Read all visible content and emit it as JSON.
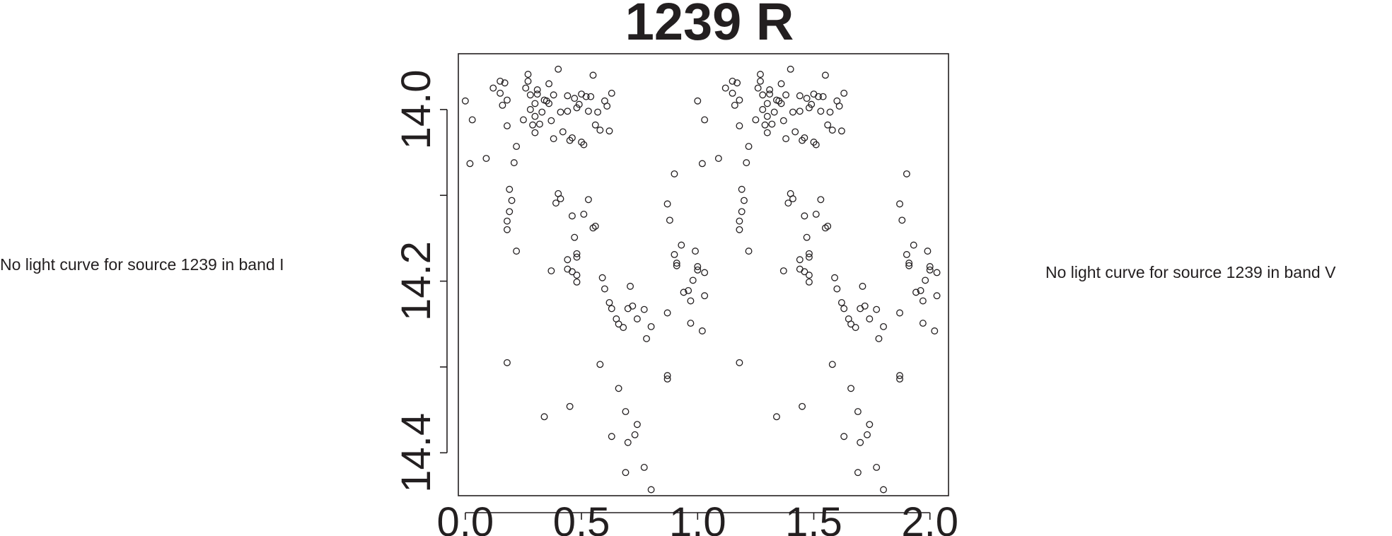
{
  "notes": {
    "left": "No light curve for source 1239 in band I",
    "right": "No light curve for source 1239 in band V"
  },
  "chart_data": {
    "type": "scatter",
    "title": "1239 R",
    "xlabel": "",
    "ylabel": "",
    "xlim": [
      -0.03,
      2.08
    ],
    "ylim": [
      14.45,
      13.935
    ],
    "y_inverted": true,
    "grid": false,
    "xticks": [
      0.0,
      0.5,
      1.0,
      1.5,
      2.0
    ],
    "xtick_labels": [
      "0.0",
      "0.5",
      "1.0",
      "1.5",
      "2.0"
    ],
    "yticks": [
      14.0,
      14.1,
      14.2,
      14.3,
      14.4
    ],
    "ytick_labels": [
      "14.0",
      "",
      "14.2",
      "",
      "14.4"
    ],
    "marker": "open-circle",
    "series": [
      {
        "x": [
          0.0,
          0.03,
          0.02,
          0.09,
          0.12,
          0.15,
          0.15,
          0.16,
          0.18,
          0.17,
          0.18,
          0.19,
          0.21,
          0.22,
          0.22,
          0.2,
          0.18,
          0.18,
          0.19,
          0.18,
          0.25,
          0.26,
          0.27,
          0.27,
          0.28,
          0.28,
          0.29,
          0.3,
          0.31,
          0.31,
          0.3,
          0.3,
          0.32,
          0.33,
          0.34,
          0.35,
          0.36,
          0.36,
          0.37,
          0.38,
          0.38,
          0.4,
          0.41,
          0.42,
          0.44,
          0.44,
          0.45,
          0.46,
          0.47,
          0.48,
          0.49,
          0.5,
          0.5,
          0.51,
          0.52,
          0.53,
          0.54,
          0.55,
          0.56,
          0.57,
          0.58,
          0.6,
          0.61,
          0.62,
          0.63,
          0.4,
          0.41,
          0.39,
          0.46,
          0.51,
          0.55,
          0.47,
          0.48,
          0.48,
          0.53,
          0.56,
          0.59,
          0.6,
          0.37,
          0.44,
          0.46,
          0.48,
          0.44,
          0.48,
          0.58,
          0.62,
          0.63,
          0.65,
          0.66,
          0.68,
          0.7,
          0.71,
          0.72,
          0.74,
          0.77,
          0.78,
          0.8,
          0.66,
          0.34,
          0.45,
          0.63,
          0.69,
          0.74,
          0.77,
          0.7,
          0.69,
          0.8,
          0.73,
          0.87,
          0.87,
          0.87,
          0.88,
          0.9,
          0.91,
          0.91,
          0.93,
          0.94,
          0.96,
          0.97,
          0.97,
          0.98,
          0.99,
          1.0,
          1.0,
          1.02,
          1.03,
          1.03,
          0.9,
          0.87
        ],
        "y": [
          13.99,
          14.012,
          14.063,
          14.057,
          13.975,
          13.967,
          13.981,
          13.995,
          14.019,
          13.969,
          13.989,
          14.093,
          14.062,
          14.043,
          14.165,
          14.106,
          14.13,
          14.14,
          14.119,
          14.295,
          14.012,
          13.975,
          13.959,
          13.967,
          13.983,
          14.0,
          14.018,
          14.027,
          13.977,
          13.982,
          13.993,
          14.008,
          14.017,
          14.003,
          13.989,
          13.99,
          13.97,
          13.993,
          14.013,
          13.983,
          14.034,
          13.953,
          14.003,
          14.026,
          13.984,
          14.002,
          14.036,
          14.033,
          13.987,
          13.998,
          13.994,
          13.982,
          14.038,
          14.041,
          13.985,
          14.002,
          13.985,
          13.96,
          14.018,
          14.003,
          14.024,
          13.99,
          13.996,
          14.025,
          13.981,
          14.098,
          14.104,
          14.109,
          14.124,
          14.122,
          14.138,
          14.149,
          14.168,
          14.172,
          14.105,
          14.136,
          14.196,
          14.209,
          14.188,
          14.186,
          14.189,
          14.193,
          14.175,
          14.201,
          14.297,
          14.225,
          14.232,
          14.244,
          14.25,
          14.254,
          14.232,
          14.206,
          14.229,
          14.244,
          14.233,
          14.267,
          14.253,
          14.325,
          14.358,
          14.346,
          14.381,
          14.423,
          14.367,
          14.417,
          14.388,
          14.352,
          14.443,
          14.379,
          14.31,
          14.314,
          14.237,
          14.129,
          14.169,
          14.182,
          14.179,
          14.158,
          14.213,
          14.211,
          14.223,
          14.249,
          14.199,
          14.165,
          14.183,
          14.187,
          14.258,
          14.19,
          14.217,
          14.075,
          14.11
        ]
      }
    ]
  }
}
